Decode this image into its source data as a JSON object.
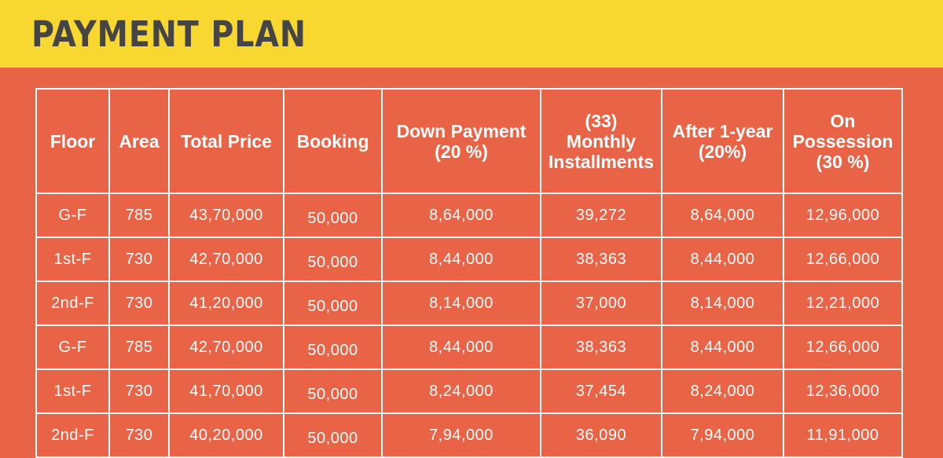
{
  "header": {
    "title": "PAYMENT PLAN"
  },
  "table": {
    "columns": [
      {
        "lines": [
          "Floor"
        ]
      },
      {
        "lines": [
          "Area"
        ]
      },
      {
        "lines": [
          "Total Price"
        ]
      },
      {
        "lines": [
          "Booking"
        ]
      },
      {
        "lines": [
          "Down Payment",
          "(20 %)"
        ]
      },
      {
        "lines": [
          "(33)",
          "Monthly",
          "Installments"
        ]
      },
      {
        "lines": [
          "After 1-year",
          "(20%)"
        ]
      },
      {
        "lines": [
          "On",
          "Possession",
          "(30 %)"
        ]
      }
    ],
    "rows": [
      [
        "G-F",
        "785",
        "43,70,000",
        "50,000",
        "8,64,000",
        "39,272",
        "8,64,000",
        "12,96,000"
      ],
      [
        "1st-F",
        "730",
        "42,70,000",
        "50,000",
        "8,44,000",
        "38,363",
        "8,44,000",
        "12,66,000"
      ],
      [
        "2nd-F",
        "730",
        "41,20,000",
        "50,000",
        "8,14,000",
        "37,000",
        "8,14,000",
        "12,21,000"
      ],
      [
        "G-F",
        "785",
        "42,70,000",
        "50,000",
        "8,44,000",
        "38,363",
        "8,44,000",
        "12,66,000"
      ],
      [
        "1st-F",
        "730",
        "41,70,000",
        "50,000",
        "8,24,000",
        "37,454",
        "8,24,000",
        "12,36,000"
      ],
      [
        "2nd-F",
        "730",
        "40,20,000",
        "50,000",
        "7,94,000",
        "36,090",
        "7,94,000",
        "11,91,000"
      ]
    ]
  },
  "colors": {
    "banner": "#f7d730",
    "background": "#e96446",
    "title_text": "#454545",
    "table_text": "#ffffff"
  }
}
